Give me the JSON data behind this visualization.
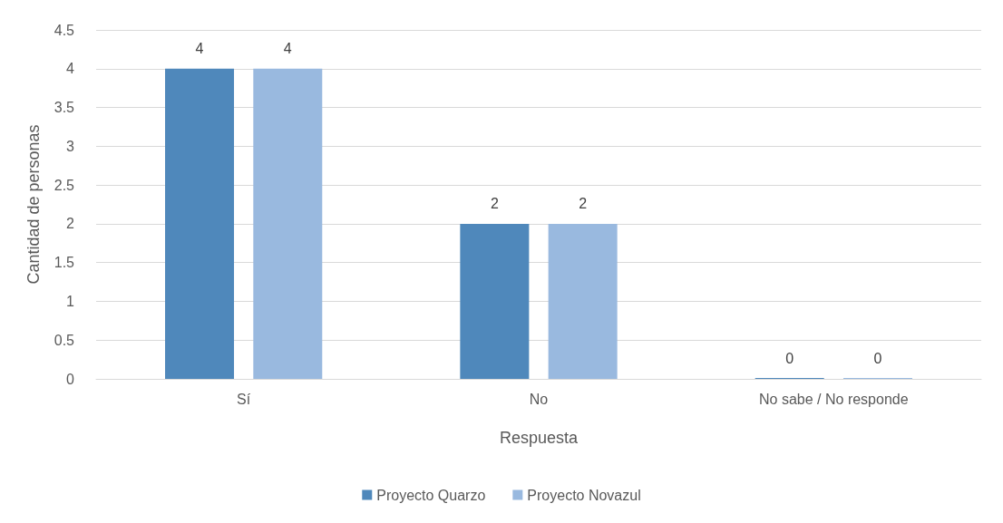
{
  "chart_data": {
    "type": "bar",
    "xlabel": "Respuesta",
    "ylabel": "Cantidad de personas",
    "categories": [
      "Sí",
      "No",
      "No sabe / No responde"
    ],
    "series": [
      {
        "name": "Proyecto Quarzo",
        "color": "#4f88bb",
        "values": [
          4,
          2,
          0
        ]
      },
      {
        "name": "Proyecto Novazul",
        "color": "#99b9df",
        "values": [
          4,
          2,
          0
        ]
      }
    ],
    "ylim": [
      0,
      4.5
    ],
    "yticks": [
      0,
      0.5,
      1,
      1.5,
      2,
      2.5,
      3,
      3.5,
      4,
      4.5
    ],
    "grid": "y",
    "legend": "bottom",
    "data_labels": true
  }
}
